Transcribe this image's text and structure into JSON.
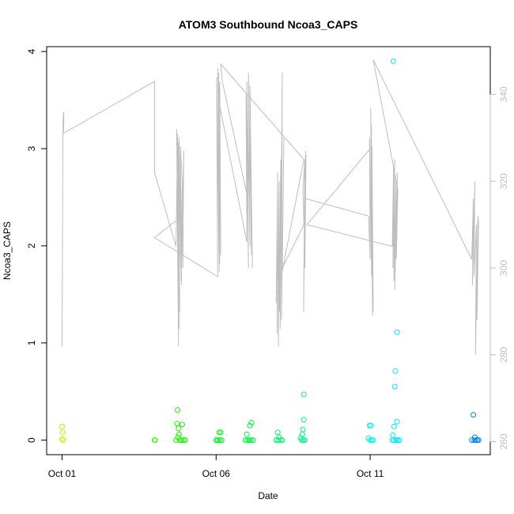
{
  "chart_data": {
    "type": "scatter",
    "title": "ATOM3 Southbound Ncoa3_CAPS",
    "xlabel": "Date",
    "ylabel": "Ncoa3_CAPS",
    "x_ticks": [
      "Oct 01",
      "Oct 06",
      "Oct 11"
    ],
    "x_tick_days": [
      1,
      6,
      11
    ],
    "xlim": [
      0.5,
      14.9
    ],
    "ylim": [
      -0.15,
      4.05
    ],
    "y_ticks": [
      0,
      1,
      2,
      3,
      4
    ],
    "right_axis": {
      "ylim": [
        257,
        351
      ],
      "ticks": [
        260,
        280,
        300,
        320,
        340
      ],
      "color": "#bebebe"
    },
    "points_series": {
      "marker": "open-circle",
      "color_gradient": "day-of-month, yellow-green to blue",
      "points": [
        {
          "x": 1.0,
          "y": 0.14
        },
        {
          "x": 1.02,
          "y": 0.08
        },
        {
          "x": 1.0,
          "y": 0.01
        },
        {
          "x": 1.04,
          "y": 0.0
        },
        {
          "x": 4.0,
          "y": 0.0
        },
        {
          "x": 4.02,
          "y": 0.0
        },
        {
          "x": 4.75,
          "y": 0.31
        },
        {
          "x": 4.73,
          "y": 0.17
        },
        {
          "x": 4.78,
          "y": 0.12
        },
        {
          "x": 4.9,
          "y": 0.16
        },
        {
          "x": 4.8,
          "y": 0.06
        },
        {
          "x": 4.76,
          "y": 0.03
        },
        {
          "x": 4.7,
          "y": 0.0
        },
        {
          "x": 4.82,
          "y": 0.0
        },
        {
          "x": 4.87,
          "y": 0.0
        },
        {
          "x": 4.93,
          "y": 0.0
        },
        {
          "x": 5.0,
          "y": 0.0
        },
        {
          "x": 6.1,
          "y": 0.08
        },
        {
          "x": 6.15,
          "y": 0.08
        },
        {
          "x": 6.0,
          "y": 0.0
        },
        {
          "x": 6.05,
          "y": 0.0
        },
        {
          "x": 6.12,
          "y": 0.0
        },
        {
          "x": 6.18,
          "y": 0.0
        },
        {
          "x": 7.0,
          "y": 0.06
        },
        {
          "x": 7.1,
          "y": 0.15
        },
        {
          "x": 7.15,
          "y": 0.18
        },
        {
          "x": 6.95,
          "y": 0.0
        },
        {
          "x": 7.02,
          "y": 0.0
        },
        {
          "x": 7.08,
          "y": 0.0
        },
        {
          "x": 7.13,
          "y": 0.0
        },
        {
          "x": 7.2,
          "y": 0.0
        },
        {
          "x": 8.0,
          "y": 0.08
        },
        {
          "x": 8.05,
          "y": 0.03
        },
        {
          "x": 7.95,
          "y": 0.0
        },
        {
          "x": 8.02,
          "y": 0.0
        },
        {
          "x": 8.1,
          "y": 0.0
        },
        {
          "x": 8.15,
          "y": 0.0
        },
        {
          "x": 8.85,
          "y": 0.47
        },
        {
          "x": 8.85,
          "y": 0.21
        },
        {
          "x": 8.82,
          "y": 0.11
        },
        {
          "x": 8.8,
          "y": 0.06
        },
        {
          "x": 8.75,
          "y": 0.02
        },
        {
          "x": 8.78,
          "y": 0.0
        },
        {
          "x": 8.83,
          "y": 0.0
        },
        {
          "x": 8.88,
          "y": 0.0
        },
        {
          "x": 10.98,
          "y": 0.15
        },
        {
          "x": 11.03,
          "y": 0.15
        },
        {
          "x": 10.95,
          "y": 0.02
        },
        {
          "x": 11.0,
          "y": 0.0
        },
        {
          "x": 11.05,
          "y": 0.0
        },
        {
          "x": 11.1,
          "y": 0.0
        },
        {
          "x": 11.75,
          "y": 3.9
        },
        {
          "x": 11.88,
          "y": 1.11
        },
        {
          "x": 11.82,
          "y": 0.71
        },
        {
          "x": 11.8,
          "y": 0.55
        },
        {
          "x": 11.87,
          "y": 0.19
        },
        {
          "x": 11.78,
          "y": 0.14
        },
        {
          "x": 11.74,
          "y": 0.05
        },
        {
          "x": 11.72,
          "y": 0.0
        },
        {
          "x": 11.78,
          "y": 0.0
        },
        {
          "x": 11.85,
          "y": 0.0
        },
        {
          "x": 11.9,
          "y": 0.0
        },
        {
          "x": 11.95,
          "y": 0.0
        },
        {
          "x": 14.35,
          "y": 0.26
        },
        {
          "x": 14.4,
          "y": 0.03
        },
        {
          "x": 14.3,
          "y": 0.0
        },
        {
          "x": 14.38,
          "y": 0.0
        },
        {
          "x": 14.42,
          "y": 0.0
        },
        {
          "x": 14.48,
          "y": 0.0
        },
        {
          "x": 14.52,
          "y": 0.0
        }
      ]
    },
    "line_series": {
      "axis": "right",
      "color": "#bebebe",
      "x": [
        1.0,
        1.03,
        1.05,
        1.06,
        1.04,
        4.0,
        4.0,
        4.7,
        4.75,
        4.78,
        4.72,
        4.8,
        4.75,
        4.82,
        4.77,
        4.85,
        4.8,
        4.88,
        4.84,
        4.9,
        4.86,
        4.95,
        4.92,
        4.9,
        4.0,
        6.05,
        6.02,
        6.1,
        6.06,
        6.12,
        6.08,
        6.15,
        6.12,
        6.1,
        7.0,
        6.97,
        7.05,
        7.0,
        7.1,
        7.05,
        7.15,
        7.1,
        7.18,
        7.12,
        7.0,
        6.2,
        6.15,
        8.85,
        7.95,
        8.0,
        7.98,
        8.05,
        8.02,
        8.1,
        8.06,
        8.12,
        8.08,
        8.15,
        8.12,
        8.2,
        8.15,
        8.85,
        8.82,
        8.88,
        8.84,
        8.9,
        8.86,
        8.92,
        8.88,
        8.9,
        10.95,
        11.0,
        10.98,
        11.05,
        11.02,
        11.08,
        11.04,
        11.1,
        11.06,
        8.95,
        11.72,
        11.76,
        11.74,
        11.8,
        11.77,
        11.84,
        11.8,
        11.88,
        11.85,
        11.9,
        11.1,
        14.3,
        14.35,
        14.32,
        14.4,
        14.37,
        14.45,
        14.42,
        14.5,
        14.47,
        14.52
      ],
      "y": [
        282,
        333,
        336,
        334,
        331,
        343,
        322,
        305,
        330,
        282,
        332,
        286,
        331,
        290,
        329,
        300,
        330,
        296,
        328,
        320,
        297,
        327,
        300,
        312,
        307,
        298,
        344,
        299,
        346,
        301,
        345,
        303,
        343,
        338,
        306,
        340,
        300,
        343,
        305,
        345,
        303,
        342,
        300,
        330,
        317,
        343,
        347,
        325,
        292,
        322,
        285,
        320,
        282,
        325,
        290,
        321,
        286,
        345,
        288,
        330,
        300,
        310,
        318,
        325,
        290,
        327,
        305,
        326,
        300,
        316,
        312,
        302,
        330,
        298,
        337,
        289,
        333,
        290,
        328,
        310,
        305,
        323,
        300,
        325,
        297,
        320,
        295,
        322,
        302,
        318,
        348,
        302,
        316,
        296,
        320,
        298,
        310,
        280,
        312,
        288,
        311
      ]
    }
  }
}
